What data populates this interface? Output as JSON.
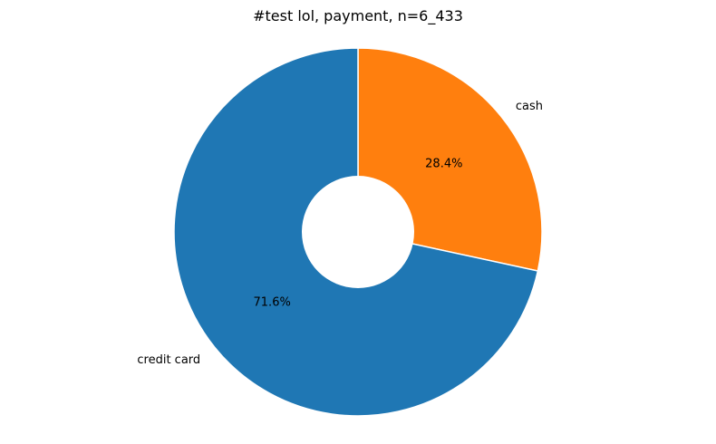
{
  "chart_data": {
    "type": "pie",
    "title": "#test lol, payment, n=6_433",
    "donut": true,
    "start_angle_deg": 90,
    "direction": "clockwise",
    "slices": [
      {
        "label": "cash",
        "value": 28.4,
        "pct_label": "28.4%",
        "color": "#ff7f0e"
      },
      {
        "label": "credit card",
        "value": 71.6,
        "pct_label": "71.6%",
        "color": "#1f77b4"
      }
    ],
    "edge_color": "#ffffff"
  }
}
